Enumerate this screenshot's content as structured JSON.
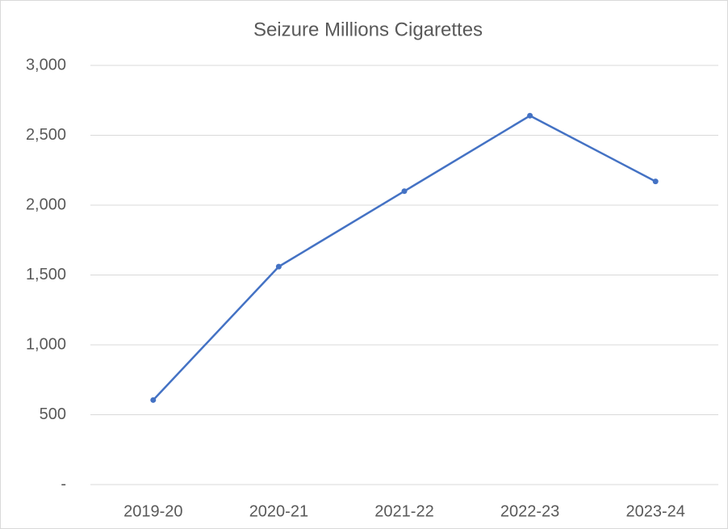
{
  "chart_data": {
    "type": "line",
    "title": "Seizure Millions Cigarettes",
    "categories": [
      "2019-20",
      "2020-21",
      "2021-22",
      "2022-23",
      "2023-24"
    ],
    "series": [
      {
        "name": "Seizure Millions Cigarettes",
        "color": "#4472c4",
        "values": [
          605,
          1560,
          2100,
          2640,
          2170
        ]
      }
    ],
    "ylim": [
      0,
      3000
    ],
    "yticks": [
      {
        "value": 0,
        "label": "-"
      },
      500,
      {
        "value": 1000,
        "label": "1,000"
      },
      {
        "value": 1500,
        "label": "1,500"
      },
      {
        "value": 2000,
        "label": "2,000"
      },
      {
        "value": 2500,
        "label": "2,500"
      },
      {
        "value": 3000,
        "label": "3,000"
      }
    ],
    "grid": true
  }
}
